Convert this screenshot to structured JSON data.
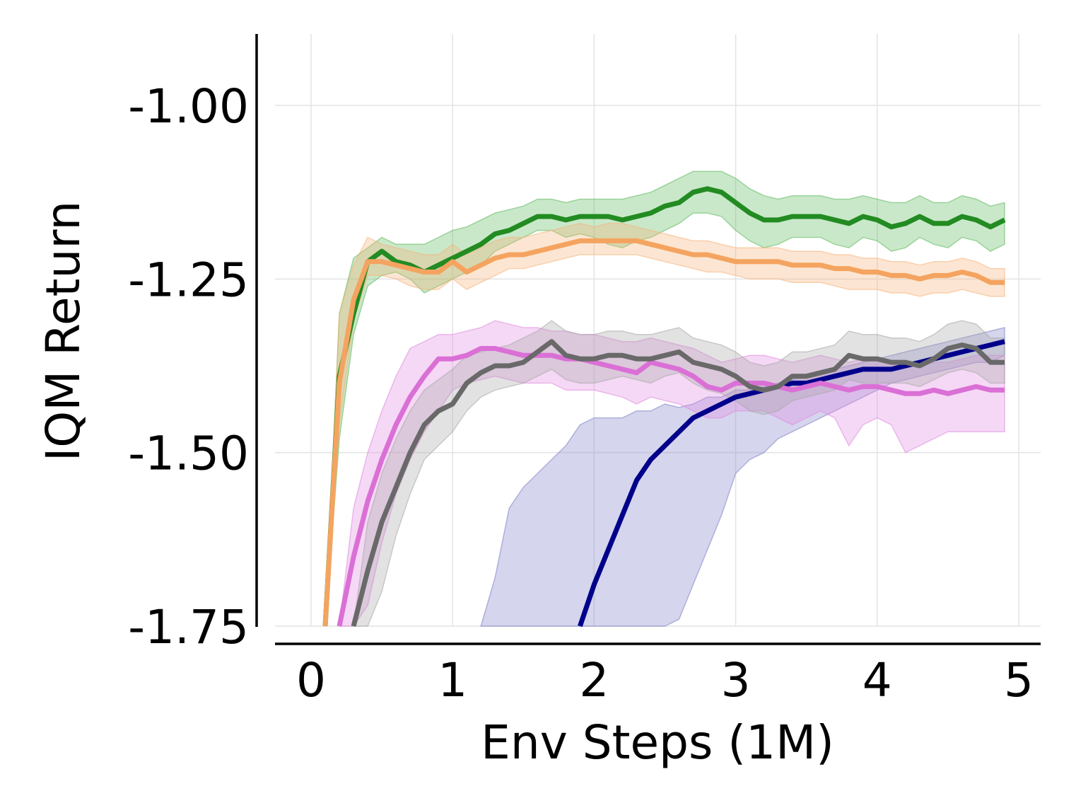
{
  "chart_data": {
    "type": "line",
    "title": "",
    "xlabel": "Env Steps (1M)",
    "ylabel": "IQM Return",
    "xlim": [
      -0.25,
      5.15
    ],
    "ylim": [
      -1.75,
      -0.9
    ],
    "xticks": [
      0,
      1,
      2,
      3,
      4,
      5
    ],
    "xtick_labels": [
      "0",
      "1",
      "2",
      "3",
      "4",
      "5"
    ],
    "yticks": [
      -1.75,
      -1.5,
      -1.25,
      -1.0
    ],
    "ytick_labels": [
      "-1.75",
      "-1.50",
      "-1.25",
      "-1.00"
    ],
    "grid": true,
    "legend": "none",
    "series": [
      {
        "color": "#8080c8",
        "line_color": "#00008b",
        "x": [
          1.2,
          1.3,
          1.4,
          1.5,
          1.6,
          1.7,
          1.8,
          1.9,
          2.0,
          2.1,
          2.2,
          2.3,
          2.4,
          2.5,
          2.6,
          2.7,
          2.8,
          2.9,
          3.0,
          3.1,
          3.2,
          3.3,
          3.4,
          3.5,
          3.6,
          3.7,
          3.8,
          3.9,
          4.0,
          4.1,
          4.2,
          4.3,
          4.4,
          4.5,
          4.6,
          4.7,
          4.8,
          4.9
        ],
        "y": [
          null,
          null,
          null,
          null,
          null,
          null,
          null,
          -1.75,
          -1.69,
          -1.64,
          -1.59,
          -1.54,
          -1.51,
          -1.49,
          -1.47,
          -1.45,
          -1.44,
          -1.43,
          -1.42,
          -1.415,
          -1.41,
          -1.405,
          -1.4,
          -1.4,
          -1.395,
          -1.39,
          -1.385,
          -1.38,
          -1.38,
          -1.38,
          -1.375,
          -1.37,
          -1.365,
          -1.36,
          -1.355,
          -1.35,
          -1.345,
          -1.34
        ],
        "lower": [
          -1.75,
          -1.75,
          -1.75,
          -1.75,
          -1.75,
          -1.75,
          -1.75,
          -1.75,
          -1.75,
          -1.75,
          -1.75,
          -1.75,
          -1.75,
          -1.75,
          -1.74,
          -1.69,
          -1.64,
          -1.59,
          -1.53,
          -1.51,
          -1.5,
          -1.48,
          -1.47,
          -1.46,
          -1.45,
          -1.44,
          -1.43,
          -1.42,
          -1.41,
          -1.4,
          -1.395,
          -1.39,
          -1.385,
          -1.38,
          -1.375,
          -1.37,
          -1.37,
          -1.36
        ],
        "upper": [
          -1.75,
          -1.68,
          -1.58,
          -1.55,
          -1.53,
          -1.51,
          -1.49,
          -1.46,
          -1.45,
          -1.45,
          -1.45,
          -1.44,
          -1.44,
          -1.43,
          -1.435,
          -1.43,
          -1.42,
          -1.42,
          -1.41,
          -1.41,
          -1.405,
          -1.4,
          -1.395,
          -1.39,
          -1.385,
          -1.38,
          -1.375,
          -1.37,
          -1.365,
          -1.36,
          -1.355,
          -1.35,
          -1.345,
          -1.34,
          -1.335,
          -1.33,
          -1.325,
          -1.32
        ]
      },
      {
        "color": "#e08ae0",
        "line_color": "#da70d6",
        "x": [
          0.2,
          0.3,
          0.4,
          0.5,
          0.6,
          0.7,
          0.8,
          0.9,
          1.0,
          1.1,
          1.2,
          1.3,
          1.4,
          1.5,
          1.6,
          1.7,
          1.8,
          1.9,
          2.0,
          2.1,
          2.2,
          2.3,
          2.4,
          2.5,
          2.6,
          2.7,
          2.8,
          2.9,
          3.0,
          3.1,
          3.2,
          3.3,
          3.4,
          3.5,
          3.6,
          3.7,
          3.8,
          3.9,
          4.0,
          4.1,
          4.2,
          4.3,
          4.4,
          4.5,
          4.6,
          4.7,
          4.8,
          4.9
        ],
        "y": [
          -1.75,
          -1.65,
          -1.57,
          -1.51,
          -1.46,
          -1.42,
          -1.39,
          -1.365,
          -1.365,
          -1.36,
          -1.35,
          -1.35,
          -1.355,
          -1.36,
          -1.36,
          -1.36,
          -1.365,
          -1.365,
          -1.37,
          -1.375,
          -1.38,
          -1.385,
          -1.37,
          -1.375,
          -1.38,
          -1.39,
          -1.405,
          -1.41,
          -1.4,
          -1.4,
          -1.4,
          -1.405,
          -1.41,
          -1.405,
          -1.4,
          -1.405,
          -1.41,
          -1.405,
          -1.405,
          -1.41,
          -1.415,
          -1.415,
          -1.41,
          -1.415,
          -1.41,
          -1.405,
          -1.41,
          -1.41
        ],
        "lower": [
          -1.75,
          -1.75,
          -1.72,
          -1.63,
          -1.56,
          -1.51,
          -1.47,
          -1.44,
          -1.41,
          -1.4,
          -1.395,
          -1.39,
          -1.395,
          -1.4,
          -1.4,
          -1.4,
          -1.41,
          -1.41,
          -1.41,
          -1.415,
          -1.42,
          -1.43,
          -1.42,
          -1.425,
          -1.43,
          -1.44,
          -1.45,
          -1.45,
          -1.44,
          -1.44,
          -1.44,
          -1.45,
          -1.46,
          -1.45,
          -1.44,
          -1.45,
          -1.49,
          -1.46,
          -1.45,
          -1.46,
          -1.5,
          -1.49,
          -1.48,
          -1.47,
          -1.47,
          -1.47,
          -1.47,
          -1.47
        ],
        "upper": [
          -1.75,
          -1.58,
          -1.5,
          -1.44,
          -1.39,
          -1.35,
          -1.34,
          -1.33,
          -1.33,
          -1.325,
          -1.32,
          -1.31,
          -1.315,
          -1.32,
          -1.32,
          -1.325,
          -1.325,
          -1.33,
          -1.33,
          -1.335,
          -1.34,
          -1.34,
          -1.335,
          -1.34,
          -1.345,
          -1.35,
          -1.36,
          -1.37,
          -1.365,
          -1.36,
          -1.36,
          -1.365,
          -1.37,
          -1.365,
          -1.36,
          -1.365,
          -1.37,
          -1.365,
          -1.365,
          -1.37,
          -1.375,
          -1.375,
          -1.37,
          -1.37,
          -1.365,
          -1.36,
          -1.36,
          -1.36
        ]
      },
      {
        "color": "#a8a8a8",
        "line_color": "#696969",
        "x": [
          0.3,
          0.4,
          0.5,
          0.6,
          0.7,
          0.8,
          0.9,
          1.0,
          1.1,
          1.2,
          1.3,
          1.4,
          1.5,
          1.6,
          1.7,
          1.8,
          1.9,
          2.0,
          2.1,
          2.2,
          2.3,
          2.4,
          2.5,
          2.6,
          2.7,
          2.8,
          2.9,
          3.0,
          3.1,
          3.2,
          3.3,
          3.4,
          3.5,
          3.6,
          3.7,
          3.8,
          3.9,
          4.0,
          4.1,
          4.2,
          4.3,
          4.4,
          4.5,
          4.6,
          4.7,
          4.8,
          4.9
        ],
        "y": [
          -1.75,
          -1.67,
          -1.6,
          -1.55,
          -1.5,
          -1.46,
          -1.44,
          -1.43,
          -1.4,
          -1.385,
          -1.375,
          -1.375,
          -1.37,
          -1.355,
          -1.34,
          -1.36,
          -1.365,
          -1.365,
          -1.36,
          -1.36,
          -1.365,
          -1.365,
          -1.36,
          -1.355,
          -1.37,
          -1.375,
          -1.38,
          -1.39,
          -1.405,
          -1.41,
          -1.405,
          -1.39,
          -1.39,
          -1.385,
          -1.38,
          -1.36,
          -1.365,
          -1.365,
          -1.37,
          -1.37,
          -1.375,
          -1.365,
          -1.35,
          -1.345,
          -1.35,
          -1.37,
          -1.37
        ],
        "lower": [
          -1.75,
          -1.75,
          -1.7,
          -1.62,
          -1.56,
          -1.51,
          -1.49,
          -1.47,
          -1.44,
          -1.42,
          -1.41,
          -1.405,
          -1.4,
          -1.39,
          -1.38,
          -1.395,
          -1.4,
          -1.4,
          -1.395,
          -1.39,
          -1.395,
          -1.4,
          -1.39,
          -1.385,
          -1.4,
          -1.41,
          -1.415,
          -1.425,
          -1.44,
          -1.445,
          -1.44,
          -1.425,
          -1.42,
          -1.415,
          -1.41,
          -1.395,
          -1.4,
          -1.4,
          -1.4,
          -1.4,
          -1.405,
          -1.395,
          -1.385,
          -1.38,
          -1.385,
          -1.4,
          -1.4
        ],
        "upper": [
          -1.75,
          -1.6,
          -1.53,
          -1.48,
          -1.44,
          -1.41,
          -1.395,
          -1.38,
          -1.36,
          -1.355,
          -1.35,
          -1.345,
          -1.335,
          -1.325,
          -1.31,
          -1.325,
          -1.33,
          -1.33,
          -1.325,
          -1.325,
          -1.33,
          -1.33,
          -1.325,
          -1.32,
          -1.335,
          -1.34,
          -1.345,
          -1.355,
          -1.37,
          -1.375,
          -1.37,
          -1.355,
          -1.355,
          -1.35,
          -1.345,
          -1.325,
          -1.33,
          -1.33,
          -1.335,
          -1.335,
          -1.34,
          -1.33,
          -1.315,
          -1.31,
          -1.315,
          -1.335,
          -1.335
        ]
      },
      {
        "color": "#5cb85c",
        "line_color": "#228b22",
        "x": [
          0.1,
          0.2,
          0.3,
          0.4,
          0.5,
          0.6,
          0.7,
          0.8,
          0.9,
          1.0,
          1.1,
          1.2,
          1.3,
          1.4,
          1.5,
          1.6,
          1.7,
          1.8,
          1.9,
          2.0,
          2.1,
          2.2,
          2.3,
          2.4,
          2.5,
          2.6,
          2.7,
          2.8,
          2.9,
          3.0,
          3.1,
          3.2,
          3.3,
          3.4,
          3.5,
          3.6,
          3.7,
          3.8,
          3.9,
          4.0,
          4.1,
          4.2,
          4.3,
          4.4,
          4.5,
          4.6,
          4.7,
          4.8,
          4.9
        ],
        "y": [
          -1.75,
          -1.39,
          -1.3,
          -1.225,
          -1.21,
          -1.225,
          -1.23,
          -1.24,
          -1.23,
          -1.22,
          -1.21,
          -1.2,
          -1.185,
          -1.18,
          -1.17,
          -1.16,
          -1.16,
          -1.165,
          -1.16,
          -1.16,
          -1.16,
          -1.165,
          -1.16,
          -1.155,
          -1.145,
          -1.14,
          -1.125,
          -1.12,
          -1.125,
          -1.14,
          -1.155,
          -1.165,
          -1.165,
          -1.16,
          -1.16,
          -1.16,
          -1.165,
          -1.17,
          -1.16,
          -1.165,
          -1.175,
          -1.17,
          -1.16,
          -1.17,
          -1.17,
          -1.16,
          -1.165,
          -1.175,
          -1.165
        ],
        "lower": [
          -1.75,
          -1.48,
          -1.33,
          -1.26,
          -1.245,
          -1.24,
          -1.25,
          -1.27,
          -1.26,
          -1.25,
          -1.24,
          -1.23,
          -1.21,
          -1.2,
          -1.19,
          -1.18,
          -1.18,
          -1.19,
          -1.185,
          -1.19,
          -1.2,
          -1.205,
          -1.195,
          -1.19,
          -1.18,
          -1.17,
          -1.155,
          -1.155,
          -1.16,
          -1.18,
          -1.195,
          -1.205,
          -1.2,
          -1.19,
          -1.19,
          -1.19,
          -1.2,
          -1.205,
          -1.19,
          -1.195,
          -1.21,
          -1.205,
          -1.19,
          -1.2,
          -1.205,
          -1.19,
          -1.195,
          -1.21,
          -1.2
        ],
        "upper": [
          -1.75,
          -1.3,
          -1.22,
          -1.205,
          -1.19,
          -1.2,
          -1.2,
          -1.2,
          -1.19,
          -1.18,
          -1.175,
          -1.165,
          -1.155,
          -1.15,
          -1.145,
          -1.135,
          -1.135,
          -1.14,
          -1.135,
          -1.135,
          -1.135,
          -1.135,
          -1.13,
          -1.125,
          -1.115,
          -1.105,
          -1.095,
          -1.095,
          -1.095,
          -1.105,
          -1.12,
          -1.13,
          -1.135,
          -1.13,
          -1.13,
          -1.13,
          -1.135,
          -1.135,
          -1.13,
          -1.135,
          -1.14,
          -1.14,
          -1.13,
          -1.14,
          -1.14,
          -1.13,
          -1.135,
          -1.145,
          -1.14
        ]
      },
      {
        "color": "#f5b27a",
        "line_color": "#f4a460",
        "x": [
          0.1,
          0.2,
          0.3,
          0.4,
          0.5,
          0.6,
          0.7,
          0.8,
          0.9,
          1.0,
          1.1,
          1.2,
          1.3,
          1.4,
          1.5,
          1.6,
          1.7,
          1.8,
          1.9,
          2.0,
          2.1,
          2.2,
          2.3,
          2.4,
          2.5,
          2.6,
          2.7,
          2.8,
          2.9,
          3.0,
          3.1,
          3.2,
          3.3,
          3.4,
          3.5,
          3.6,
          3.7,
          3.8,
          3.9,
          4.0,
          4.1,
          4.2,
          4.3,
          4.4,
          4.5,
          4.6,
          4.7,
          4.8,
          4.9
        ],
        "y": [
          -1.75,
          -1.4,
          -1.28,
          -1.225,
          -1.225,
          -1.23,
          -1.235,
          -1.24,
          -1.24,
          -1.225,
          -1.24,
          -1.23,
          -1.22,
          -1.215,
          -1.215,
          -1.21,
          -1.205,
          -1.2,
          -1.195,
          -1.195,
          -1.195,
          -1.195,
          -1.195,
          -1.2,
          -1.205,
          -1.21,
          -1.215,
          -1.215,
          -1.22,
          -1.225,
          -1.225,
          -1.225,
          -1.225,
          -1.23,
          -1.23,
          -1.23,
          -1.235,
          -1.235,
          -1.24,
          -1.24,
          -1.245,
          -1.245,
          -1.25,
          -1.245,
          -1.245,
          -1.24,
          -1.245,
          -1.255,
          -1.255
        ],
        "lower": [
          -1.75,
          -1.46,
          -1.31,
          -1.245,
          -1.245,
          -1.25,
          -1.26,
          -1.265,
          -1.265,
          -1.25,
          -1.265,
          -1.255,
          -1.245,
          -1.235,
          -1.235,
          -1.23,
          -1.225,
          -1.22,
          -1.215,
          -1.215,
          -1.215,
          -1.215,
          -1.215,
          -1.22,
          -1.225,
          -1.23,
          -1.235,
          -1.24,
          -1.24,
          -1.245,
          -1.25,
          -1.25,
          -1.25,
          -1.255,
          -1.255,
          -1.255,
          -1.26,
          -1.265,
          -1.265,
          -1.265,
          -1.27,
          -1.27,
          -1.275,
          -1.27,
          -1.27,
          -1.265,
          -1.27,
          -1.275,
          -1.275
        ],
        "upper": [
          -1.75,
          -1.3,
          -1.23,
          -1.19,
          -1.2,
          -1.205,
          -1.21,
          -1.215,
          -1.215,
          -1.2,
          -1.215,
          -1.205,
          -1.195,
          -1.19,
          -1.19,
          -1.185,
          -1.18,
          -1.175,
          -1.17,
          -1.175,
          -1.17,
          -1.17,
          -1.175,
          -1.18,
          -1.185,
          -1.19,
          -1.195,
          -1.195,
          -1.2,
          -1.205,
          -1.205,
          -1.205,
          -1.205,
          -1.21,
          -1.21,
          -1.21,
          -1.215,
          -1.215,
          -1.22,
          -1.22,
          -1.225,
          -1.225,
          -1.23,
          -1.225,
          -1.225,
          -1.22,
          -1.225,
          -1.235,
          -1.235
        ]
      }
    ]
  }
}
